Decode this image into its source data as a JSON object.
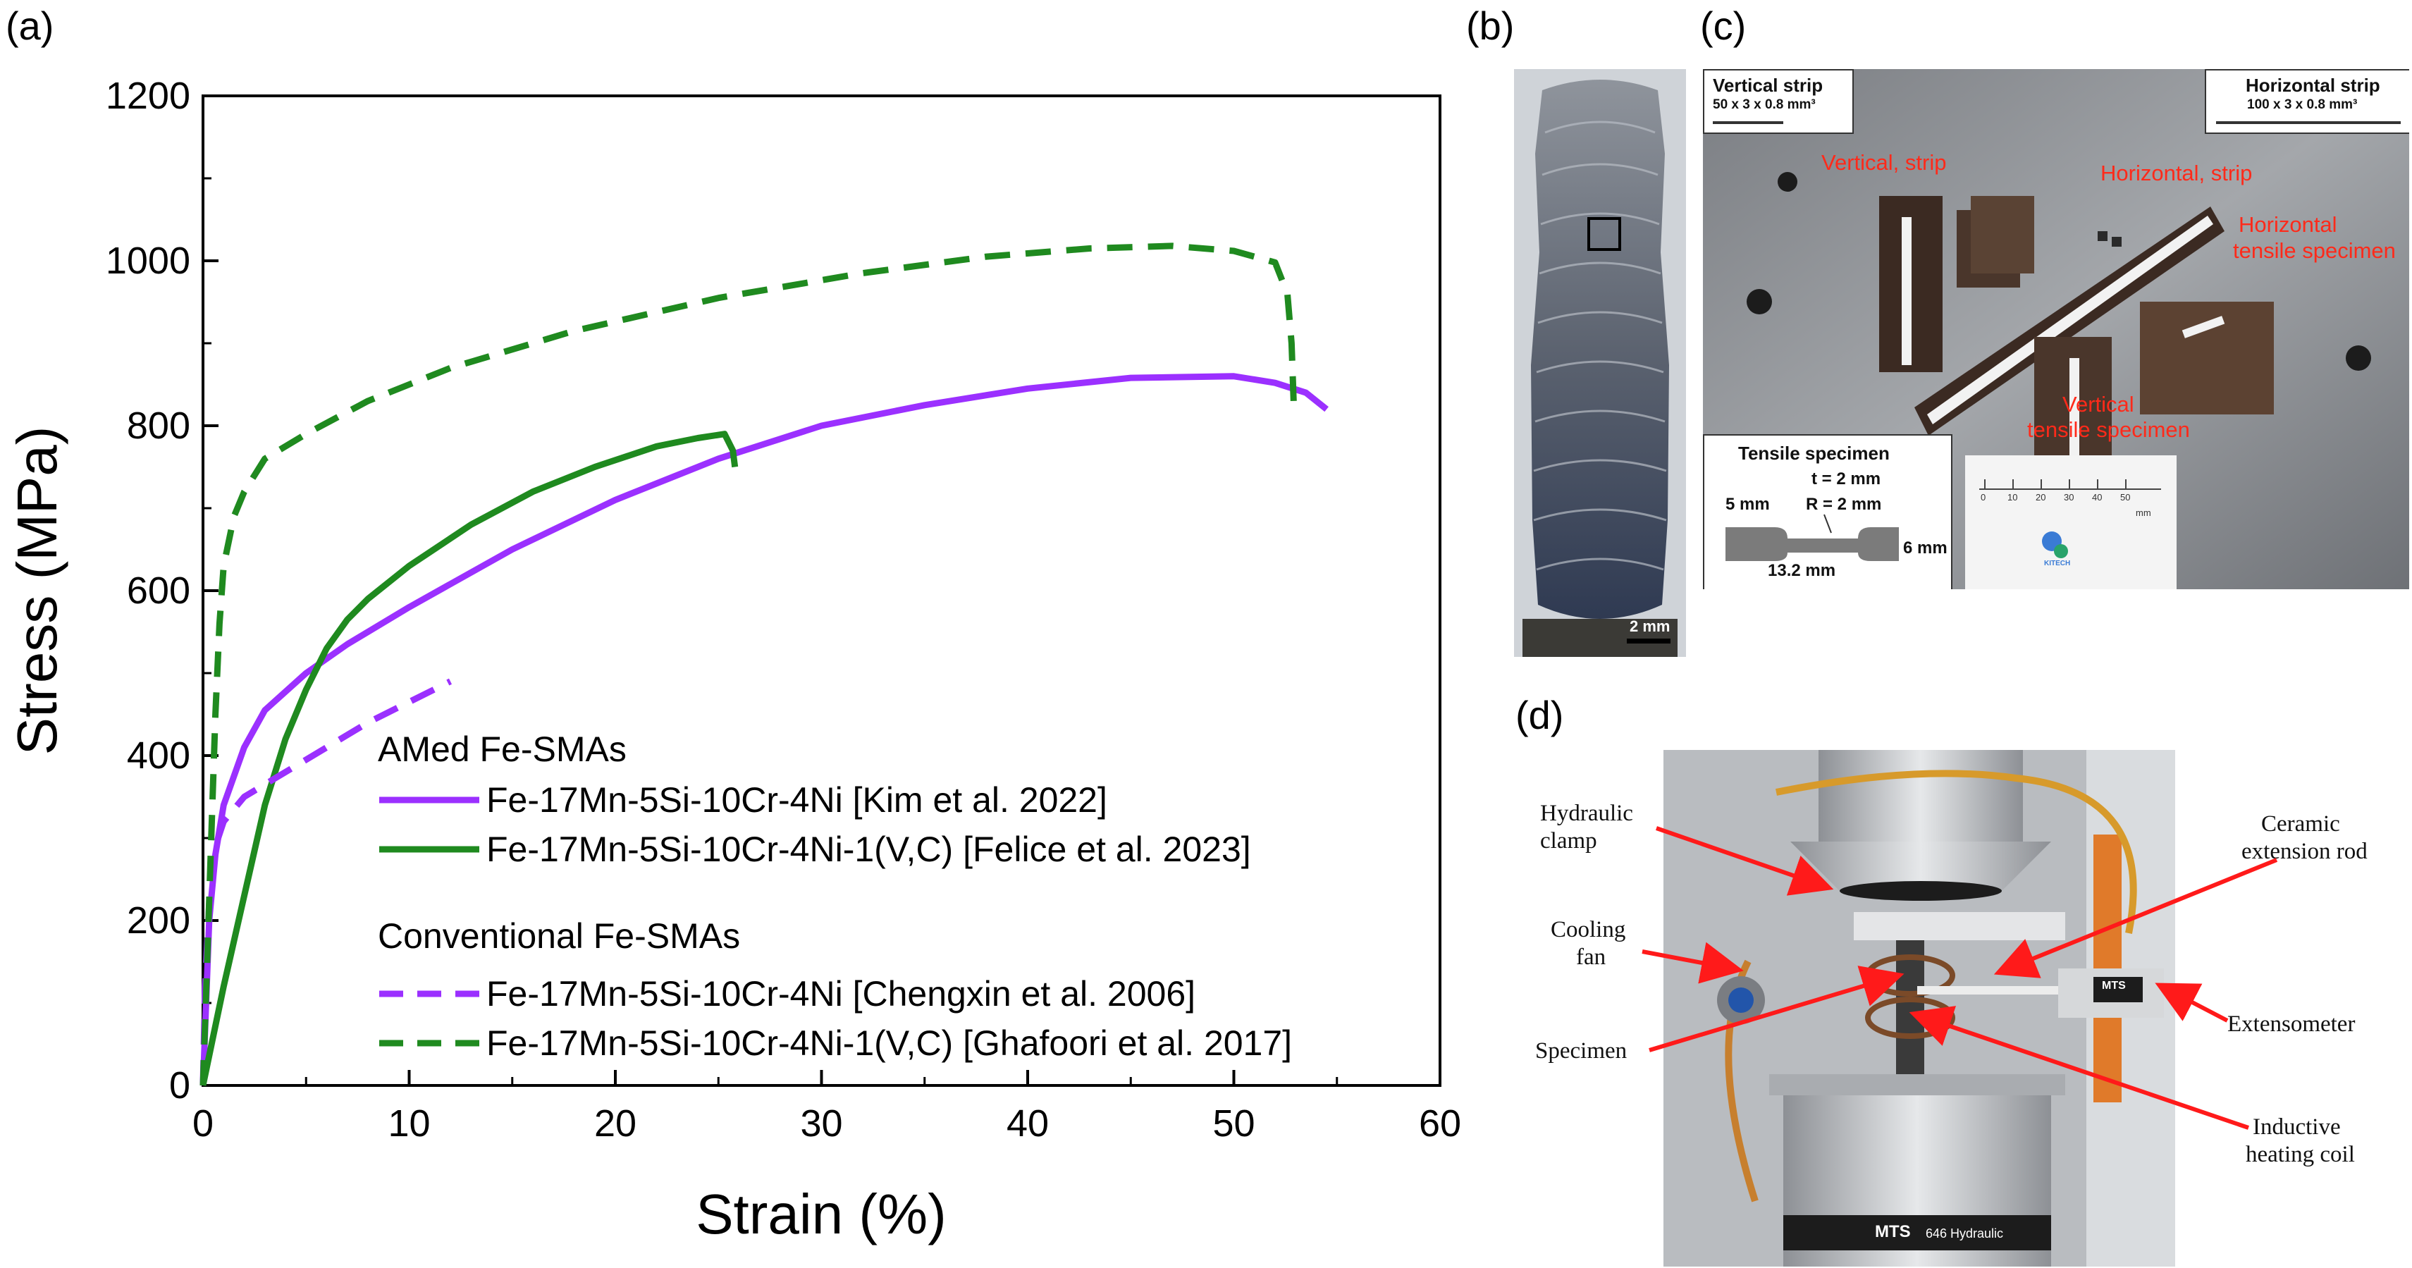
{
  "panels": {
    "a": "(a)",
    "b": "(b)",
    "c": "(c)",
    "d": "(d)"
  },
  "chart_data": {
    "type": "line",
    "xlabel": "Strain (%)",
    "ylabel": "Stress (MPa)",
    "xlim": [
      0,
      60
    ],
    "ylim": [
      0,
      1200
    ],
    "xticks": [
      0,
      10,
      20,
      30,
      40,
      50,
      60
    ],
    "yticks": [
      0,
      200,
      400,
      600,
      800,
      1000,
      1200
    ],
    "legend": {
      "group1_title": "AMed Fe-SMAs",
      "group2_title": "Conventional Fe-SMAs",
      "position": "bottom-right"
    },
    "series": [
      {
        "name": "Fe-17Mn-5Si-10Cr-4Ni [Kim et al. 2022]",
        "color": "#9b30ff",
        "dash": "solid",
        "points": [
          [
            0,
            0
          ],
          [
            0.3,
            200
          ],
          [
            0.6,
            280
          ],
          [
            1,
            340
          ],
          [
            2,
            410
          ],
          [
            3,
            455
          ],
          [
            5,
            500
          ],
          [
            7,
            535
          ],
          [
            10,
            580
          ],
          [
            15,
            650
          ],
          [
            20,
            710
          ],
          [
            25,
            760
          ],
          [
            30,
            800
          ],
          [
            35,
            825
          ],
          [
            40,
            845
          ],
          [
            45,
            858
          ],
          [
            50,
            860
          ],
          [
            52,
            852
          ],
          [
            53.5,
            840
          ],
          [
            54.5,
            820
          ]
        ]
      },
      {
        "name": "Fe-17Mn-5Si-10Cr-4Ni-1(V,C) [Felice et al. 2023]",
        "color": "#1f8a1f",
        "dash": "solid",
        "points": [
          [
            0,
            0
          ],
          [
            0.5,
            60
          ],
          [
            1,
            120
          ],
          [
            2,
            230
          ],
          [
            3,
            340
          ],
          [
            4,
            420
          ],
          [
            5,
            480
          ],
          [
            6,
            530
          ],
          [
            7,
            565
          ],
          [
            8,
            590
          ],
          [
            10,
            630
          ],
          [
            13,
            680
          ],
          [
            16,
            720
          ],
          [
            19,
            750
          ],
          [
            22,
            775
          ],
          [
            24,
            785
          ],
          [
            25.3,
            790
          ],
          [
            25.7,
            770
          ],
          [
            25.8,
            750
          ]
        ]
      },
      {
        "name": "Fe-17Mn-5Si-10Cr-4Ni [Chengxin et al. 2006]",
        "color": "#9b30ff",
        "dash": "dashed",
        "points": [
          [
            0,
            0
          ],
          [
            0.1,
            120
          ],
          [
            0.3,
            220
          ],
          [
            0.6,
            290
          ],
          [
            1,
            320
          ],
          [
            2,
            350
          ],
          [
            4,
            380
          ],
          [
            6,
            410
          ],
          [
            8,
            440
          ],
          [
            10,
            465
          ],
          [
            12,
            490
          ]
        ]
      },
      {
        "name": "Fe-17Mn-5Si-10Cr-4Ni-1(V,C) [Ghafoori et al. 2017]",
        "color": "#1f8a1f",
        "dash": "dashed",
        "points": [
          [
            0,
            0
          ],
          [
            0.2,
            150
          ],
          [
            0.4,
            300
          ],
          [
            0.6,
            450
          ],
          [
            0.8,
            560
          ],
          [
            1,
            630
          ],
          [
            1.5,
            690
          ],
          [
            2,
            720
          ],
          [
            3,
            760
          ],
          [
            5,
            790
          ],
          [
            8,
            830
          ],
          [
            12,
            870
          ],
          [
            18,
            915
          ],
          [
            25,
            955
          ],
          [
            32,
            985
          ],
          [
            38,
            1005
          ],
          [
            43,
            1015
          ],
          [
            47,
            1018
          ],
          [
            50,
            1012
          ],
          [
            52,
            998
          ],
          [
            52.6,
            960
          ],
          [
            52.8,
            900
          ],
          [
            52.9,
            830
          ]
        ]
      }
    ]
  },
  "panel_b": {
    "scale_bar": "2 mm"
  },
  "panel_c": {
    "vertical_strip_title": "Vertical strip",
    "vertical_strip_dims": "50 x 3 x 0.8 mm³",
    "horizontal_strip_title": "Horizontal strip",
    "horizontal_strip_dims": "100 x 3 x 0.8 mm³",
    "label_vertical_strip": "Vertical, strip",
    "label_horizontal_strip": "Horizontal, strip",
    "label_horizontal_tensile_1": "Horizontal",
    "label_horizontal_tensile_2": "tensile specimen",
    "label_vertical_tensile_1": "Vertical",
    "label_vertical_tensile_2": "tensile specimen",
    "tensile_title": "Tensile specimen",
    "tensile_t": "t = 2 mm",
    "tensile_r": "R = 2 mm",
    "tensile_5mm": "5 mm",
    "tensile_6mm": "6 mm",
    "tensile_length": "13.2 mm",
    "ruler_ticks": [
      "0",
      "10",
      "20",
      "30",
      "40",
      "50"
    ],
    "ruler_unit": "mm",
    "ruler_logo": "KITECH"
  },
  "panel_d": {
    "hydraulic_clamp_1": "Hydraulic",
    "hydraulic_clamp_2": "clamp",
    "cooling_fan_1": "Cooling",
    "cooling_fan_2": "fan",
    "specimen": "Specimen",
    "ceramic_rod_1": "Ceramic",
    "ceramic_rod_2": "extension rod",
    "extensometer": "Extensometer",
    "inductive_1": "Inductive",
    "inductive_2": "heating coil",
    "mts_label": "MTS",
    "mts_model": "646 Hydraulic"
  }
}
